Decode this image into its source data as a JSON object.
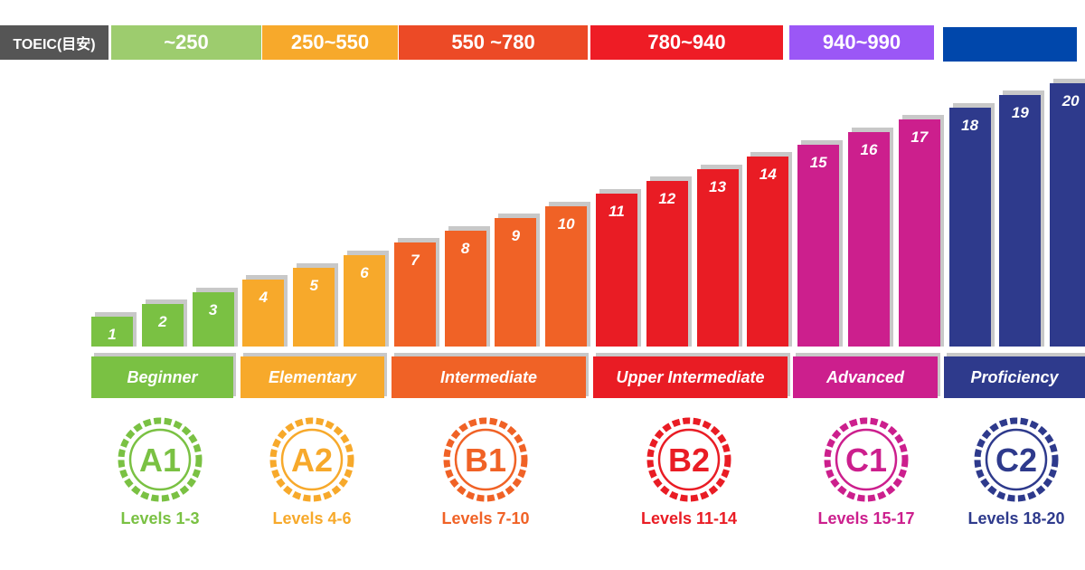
{
  "toeic": {
    "label": "TOEIC(目安)",
    "ranges": [
      {
        "text": "~250",
        "color": "#9dcc6e"
      },
      {
        "text": "250~550",
        "color": "#f7a92b"
      },
      {
        "text": "550 ~780",
        "color": "#ec4a26"
      },
      {
        "text": "780~940",
        "color": "#ee1c25"
      },
      {
        "text": "940~990",
        "color": "#9b57f6"
      },
      {
        "text": "",
        "color": "#0047ab"
      }
    ]
  },
  "levels": [
    {
      "n": "1"
    },
    {
      "n": "2"
    },
    {
      "n": "3"
    },
    {
      "n": "4"
    },
    {
      "n": "5"
    },
    {
      "n": "6"
    },
    {
      "n": "7"
    },
    {
      "n": "8"
    },
    {
      "n": "9"
    },
    {
      "n": "10"
    },
    {
      "n": "11"
    },
    {
      "n": "12"
    },
    {
      "n": "13"
    },
    {
      "n": "14"
    },
    {
      "n": "15"
    },
    {
      "n": "16"
    },
    {
      "n": "17"
    },
    {
      "n": "18"
    },
    {
      "n": "19"
    },
    {
      "n": "20"
    }
  ],
  "bands": [
    {
      "name": "Beginner",
      "code": "A1",
      "levels_text": "Levels 1-3",
      "color": "#7ac143"
    },
    {
      "name": "Elementary",
      "code": "A2",
      "levels_text": "Levels 4-6",
      "color": "#f7a92b"
    },
    {
      "name": "Intermediate",
      "code": "B1",
      "levels_text": "Levels 7-10",
      "color": "#f06226"
    },
    {
      "name": "Upper Intermediate",
      "code": "B2",
      "levels_text": "Levels 11-14",
      "color": "#e91c24"
    },
    {
      "name": "Advanced",
      "code": "C1",
      "levels_text": "Levels 15-17",
      "color": "#cc1f8d"
    },
    {
      "name": "Proficiency",
      "code": "C2",
      "levels_text": "Levels 18-20",
      "color": "#2e3a8c"
    }
  ]
}
